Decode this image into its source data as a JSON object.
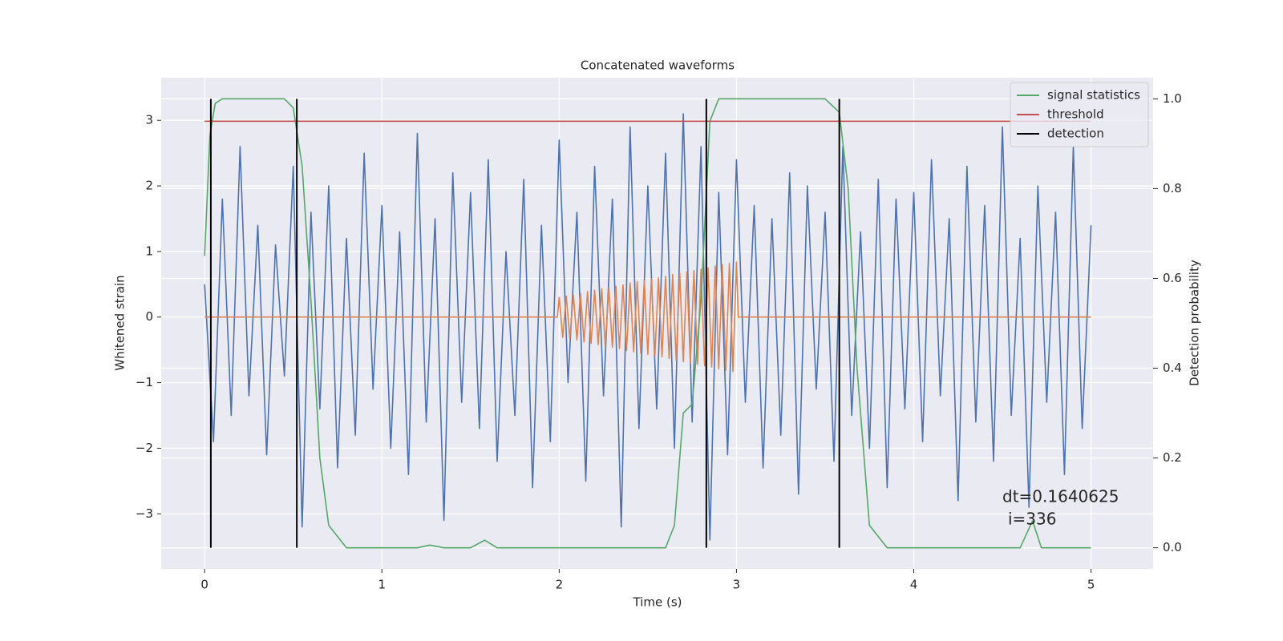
{
  "chart_data": {
    "type": "line",
    "title": "Concatenated waveforms",
    "xlabel": "Time (s)",
    "ylabel": "Whitened strain",
    "y2label": "Detection probability",
    "annotations": [
      "dt=0.1640625",
      "i=336"
    ],
    "xlim": [
      -0.245,
      5.35
    ],
    "ylim": [
      -3.84,
      3.65
    ],
    "y2lim": [
      -0.047,
      1.047
    ],
    "xticks": [
      0,
      1,
      2,
      3,
      4,
      5
    ],
    "yticks": [
      {
        "value": -3,
        "label": "−3"
      },
      {
        "value": -2,
        "label": "−2"
      },
      {
        "value": -1,
        "label": "−1"
      },
      0,
      1,
      2,
      3
    ],
    "y2ticks": [
      {
        "value": 0,
        "label": "0.0"
      },
      0.2,
      0.4,
      0.6,
      0.8,
      {
        "value": 1,
        "label": "1.0"
      }
    ],
    "grid": true,
    "legend": "upper right",
    "series": [
      {
        "color": "#4c72b0",
        "x": [
          0,
          0.05,
          0.1,
          0.15,
          0.2,
          0.25,
          0.3,
          0.35,
          0.4,
          0.45,
          0.5,
          0.55,
          0.6,
          0.65,
          0.7,
          0.75,
          0.8,
          0.85,
          0.9,
          0.95,
          1,
          1.05,
          1.1,
          1.15,
          1.2,
          1.25,
          1.3,
          1.35,
          1.4,
          1.45,
          1.5,
          1.55,
          1.6,
          1.65,
          1.7,
          1.75,
          1.8,
          1.85,
          1.9,
          1.95,
          2,
          2.05,
          2.1,
          2.15,
          2.2,
          2.25,
          2.3,
          2.35,
          2.4,
          2.45,
          2.5,
          2.55,
          2.6,
          2.65,
          2.7,
          2.75,
          2.8,
          2.85,
          2.9,
          2.95,
          3,
          3.05,
          3.1,
          3.15,
          3.2,
          3.25,
          3.3,
          3.35,
          3.4,
          3.45,
          3.5,
          3.55,
          3.6,
          3.65,
          3.7,
          3.75,
          3.8,
          3.85,
          3.9,
          3.95,
          4,
          4.05,
          4.1,
          4.15,
          4.2,
          4.25,
          4.3,
          4.35,
          4.4,
          4.45,
          4.5,
          4.55,
          4.6,
          4.65,
          4.7,
          4.75,
          4.8,
          4.85,
          4.9,
          4.95,
          5
        ],
        "values": [
          0.5,
          -1.9,
          1.8,
          -1.5,
          2.6,
          -1.2,
          1.4,
          -2.1,
          1.1,
          -0.9,
          2.3,
          -3.2,
          1.6,
          -1.4,
          2.0,
          -2.3,
          1.2,
          -1.8,
          2.5,
          -1.1,
          1.7,
          -2.0,
          1.3,
          -2.4,
          2.8,
          -1.6,
          1.5,
          -3.1,
          2.2,
          -1.3,
          1.9,
          -1.7,
          2.4,
          -2.2,
          1.0,
          -1.5,
          2.1,
          -2.6,
          1.4,
          -1.9,
          2.7,
          -1.0,
          1.6,
          -2.5,
          2.3,
          -1.2,
          1.8,
          -3.2,
          2.9,
          -1.7,
          2.0,
          -1.4,
          2.5,
          -2.0,
          3.1,
          -1.6,
          2.6,
          -3.4,
          1.9,
          -2.1,
          2.4,
          -1.3,
          1.7,
          -2.3,
          1.5,
          -1.8,
          2.2,
          -2.7,
          2.0,
          -1.1,
          1.6,
          -2.2,
          2.6,
          -1.5,
          1.3,
          -2.0,
          2.1,
          -2.6,
          1.8,
          -1.4,
          1.9,
          -1.9,
          2.4,
          -1.2,
          1.5,
          -2.8,
          2.3,
          -1.6,
          1.7,
          -2.2,
          2.9,
          -1.5,
          1.2,
          -2.9,
          2.0,
          -1.3,
          1.6,
          -2.4,
          2.6,
          -1.7,
          1.4
        ]
      },
      {
        "color": "#dd8452",
        "x": [
          0,
          1.99,
          2.0,
          2.02,
          2.04,
          2.06,
          2.08,
          2.1,
          2.12,
          2.14,
          2.16,
          2.18,
          2.2,
          2.22,
          2.24,
          2.26,
          2.28,
          2.3,
          2.32,
          2.34,
          2.36,
          2.38,
          2.4,
          2.42,
          2.44,
          2.46,
          2.48,
          2.5,
          2.52,
          2.54,
          2.56,
          2.58,
          2.6,
          2.62,
          2.64,
          2.66,
          2.68,
          2.7,
          2.72,
          2.74,
          2.76,
          2.78,
          2.8,
          2.82,
          2.84,
          2.86,
          2.88,
          2.9,
          2.92,
          2.94,
          2.96,
          2.98,
          3.0,
          3.01,
          5
        ],
        "values": [
          0,
          0,
          0.3,
          -0.31,
          0.32,
          -0.33,
          0.34,
          -0.35,
          0.36,
          -0.38,
          0.39,
          -0.4,
          0.41,
          -0.42,
          0.43,
          -0.44,
          0.45,
          -0.46,
          0.47,
          -0.48,
          0.49,
          -0.51,
          0.52,
          -0.53,
          0.54,
          -0.55,
          0.56,
          -0.57,
          0.58,
          -0.59,
          0.6,
          -0.61,
          0.62,
          -0.63,
          0.65,
          -0.66,
          0.67,
          -0.68,
          0.69,
          -0.7,
          0.71,
          -0.72,
          0.73,
          -0.74,
          0.75,
          -0.76,
          0.78,
          -0.79,
          0.8,
          -0.81,
          0.82,
          -0.83,
          0.84,
          0,
          0
        ]
      },
      {
        "name": "signal statistics",
        "color": "#55a868",
        "axis": "y2",
        "x": [
          0,
          0.03,
          0.06,
          0.1,
          0.45,
          0.5,
          0.55,
          0.6,
          0.65,
          0.7,
          0.8,
          1.2,
          1.27,
          1.35,
          1.5,
          1.58,
          1.65,
          2.6,
          2.65,
          2.7,
          2.75,
          2.8,
          2.85,
          2.9,
          3.5,
          3.58,
          3.63,
          3.68,
          3.75,
          3.85,
          4.6,
          4.67,
          4.72,
          5
        ],
        "values": [
          0.65,
          0.92,
          0.99,
          1.0,
          1.0,
          0.98,
          0.85,
          0.55,
          0.2,
          0.05,
          0.0,
          0.0,
          0.006,
          0.0,
          0.0,
          0.017,
          0.0,
          0.0,
          0.05,
          0.3,
          0.32,
          0.55,
          0.95,
          1.0,
          1.0,
          0.97,
          0.8,
          0.4,
          0.05,
          0.0,
          0.0,
          0.06,
          0.0,
          0.0
        ]
      },
      {
        "name": "threshold",
        "color": "#c44e52",
        "axis": "y2",
        "x": [
          0,
          5
        ],
        "values": [
          0.95,
          0.95
        ]
      },
      {
        "name": "detection",
        "color": "#000000",
        "axis": "y2",
        "type": "vline",
        "x": [
          0.035,
          0.52,
          2.83,
          3.58
        ],
        "values": [
          1,
          1,
          1,
          1
        ]
      }
    ]
  }
}
